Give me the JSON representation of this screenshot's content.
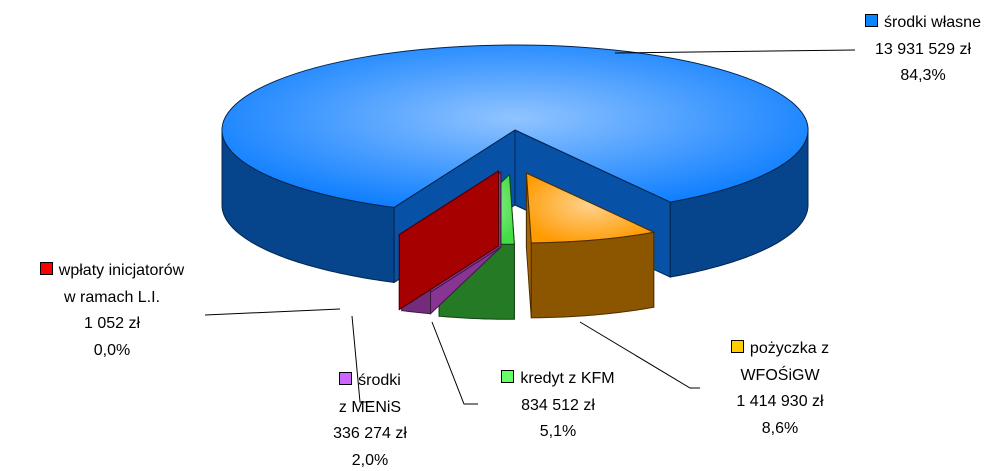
{
  "chart_data": {
    "type": "pie3d",
    "categories": [
      "środki własne",
      "pożyczka z\nWFOŚiGW",
      "kredyt z KFM",
      "środki\nz MENiS",
      "wpłaty inicjatorów\nw ramach L.I."
    ],
    "values": [
      13931529,
      1414930,
      834512,
      336274,
      1052
    ],
    "value_labels": [
      "13 931 529 zł",
      "1 414 930 zł",
      "834 512 zł",
      "336 274 zł",
      "1 052 zł"
    ],
    "percents": [
      84.3,
      8.6,
      5.1,
      2.0,
      0.0
    ],
    "percent_labels": [
      "84,3%",
      "8,6%",
      "5,1%",
      "2,0%",
      "0,0%"
    ],
    "colors": [
      "#0a7cff",
      "#ff9a00",
      "#44dd44",
      "#d050e0",
      "#ff0000"
    ],
    "legend_colors": [
      "#0a84ff",
      "#ffcc00",
      "#66ff66",
      "#cc66ff",
      "#ff0000"
    ]
  }
}
